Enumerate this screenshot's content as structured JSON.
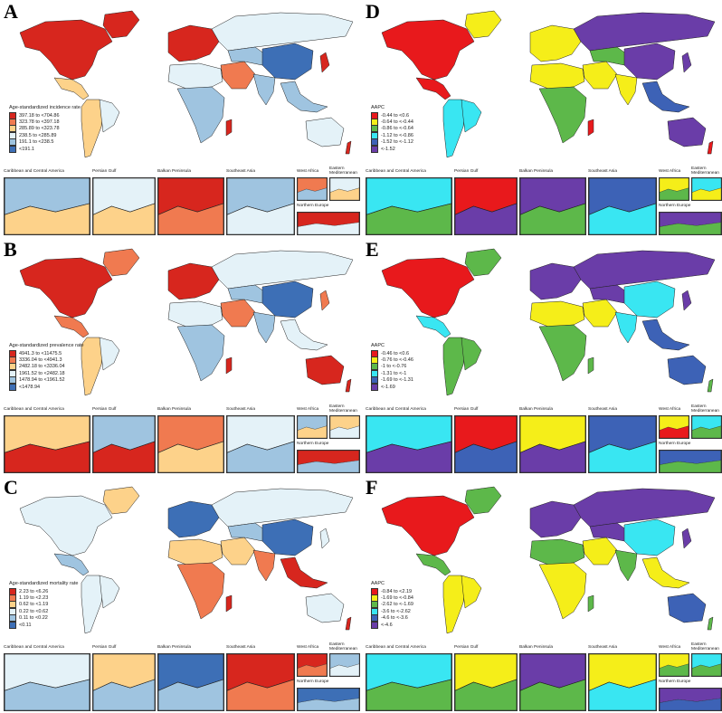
{
  "panels": [
    {
      "letter": "A",
      "legend_title": "Age-standardized incidence rate",
      "legend": [
        {
          "label": "397.18 to <704.86",
          "color": "#d7261e"
        },
        {
          "label": "323.78 to <397.18",
          "color": "#f07a50"
        },
        {
          "label": "285.89 to <323.78",
          "color": "#fdd28a"
        },
        {
          "label": "238.5 to <285.89",
          "color": "#e4f2f8"
        },
        {
          "label": "191.1 to <238.5",
          "color": "#9fc4e0"
        },
        {
          "label": "<191.1",
          "color": "#3d6fb6"
        }
      ],
      "colors": {
        "north_america": "#d7261e",
        "greenland": "#d7261e",
        "mexico": "#fdd28a",
        "south_america": "#fdd28a",
        "brazil": "#e4f2f8",
        "europe": "#d7261e",
        "north_africa": "#e4f2f8",
        "sub_saharan": "#9fc4e0",
        "middle_east": "#f07a50",
        "russia": "#e4f2f8",
        "central_asia": "#9fc4e0",
        "china": "#3d6fb6",
        "india": "#9fc4e0",
        "southeast_asia": "#9fc4e0",
        "australia": "#e4f2f8",
        "madagascar": "#d7261e",
        "japan": "#d7261e"
      }
    },
    {
      "letter": "B",
      "legend_title": "Age-standardized prevalence rate",
      "legend": [
        {
          "label": "4941.3 to <11475.5",
          "color": "#d7261e"
        },
        {
          "label": "3336.04 to <4941.3",
          "color": "#f07a50"
        },
        {
          "label": "2482.18 to <3336.04",
          "color": "#fdd28a"
        },
        {
          "label": "1961.52 to <2482.18",
          "color": "#e4f2f8"
        },
        {
          "label": "1478.94 to <1961.52",
          "color": "#9fc4e0"
        },
        {
          "label": "<1478.94",
          "color": "#3d6fb6"
        }
      ],
      "colors": {
        "north_america": "#d7261e",
        "greenland": "#f07a50",
        "mexico": "#f07a50",
        "south_america": "#fdd28a",
        "brazil": "#e4f2f8",
        "europe": "#d7261e",
        "north_africa": "#e4f2f8",
        "sub_saharan": "#9fc4e0",
        "middle_east": "#f07a50",
        "russia": "#e4f2f8",
        "central_asia": "#9fc4e0",
        "china": "#3d6fb6",
        "india": "#9fc4e0",
        "southeast_asia": "#e4f2f8",
        "australia": "#d7261e",
        "madagascar": "#d7261e",
        "japan": "#f07a50"
      }
    },
    {
      "letter": "C",
      "legend_title": "Age-standardized mortality rate",
      "legend": [
        {
          "label": "2.23 to <6.26",
          "color": "#d7261e"
        },
        {
          "label": "1.19 to <2.23",
          "color": "#f07a50"
        },
        {
          "label": "0.62 to <1.19",
          "color": "#fdd28a"
        },
        {
          "label": "0.22 to <0.62",
          "color": "#e4f2f8"
        },
        {
          "label": "0.11 to <0.22",
          "color": "#9fc4e0"
        },
        {
          "label": "<0.11",
          "color": "#3d6fb6"
        }
      ],
      "colors": {
        "north_america": "#e4f2f8",
        "greenland": "#fdd28a",
        "mexico": "#9fc4e0",
        "south_america": "#e4f2f8",
        "brazil": "#e4f2f8",
        "europe": "#3d6fb6",
        "north_africa": "#fdd28a",
        "sub_saharan": "#f07a50",
        "middle_east": "#fdd28a",
        "russia": "#e4f2f8",
        "central_asia": "#9fc4e0",
        "china": "#3d6fb6",
        "india": "#f07a50",
        "southeast_asia": "#d7261e",
        "australia": "#e4f2f8",
        "madagascar": "#d7261e",
        "japan": "#e4f2f8"
      }
    },
    {
      "letter": "D",
      "legend_title": "AAPC",
      "legend": [
        {
          "label": "-0.44 to <0.6",
          "color": "#e8191c"
        },
        {
          "label": "-0.64 to <-0.44",
          "color": "#f5ee19"
        },
        {
          "label": "-0.86 to <-0.64",
          "color": "#5db84a"
        },
        {
          "label": "-1.12 to <-0.86",
          "color": "#39e6f2"
        },
        {
          "label": "-1.52 to <-1.12",
          "color": "#3d62b6"
        },
        {
          "label": "<-1.52",
          "color": "#6a3da8"
        }
      ],
      "colors": {
        "north_america": "#e8191c",
        "greenland": "#f5ee19",
        "mexico": "#e8191c",
        "south_america": "#39e6f2",
        "brazil": "#39e6f2",
        "europe": "#f5ee19",
        "north_africa": "#f5ee19",
        "sub_saharan": "#5db84a",
        "middle_east": "#f5ee19",
        "russia": "#6a3da8",
        "central_asia": "#5db84a",
        "china": "#6a3da8",
        "india": "#f5ee19",
        "southeast_asia": "#3d62b6",
        "australia": "#6a3da8",
        "madagascar": "#e8191c",
        "japan": "#6a3da8"
      }
    },
    {
      "letter": "E",
      "legend_title": "AAPC",
      "legend": [
        {
          "label": "-0.46 to <0.6",
          "color": "#e8191c"
        },
        {
          "label": "-0.76 to <-0.46",
          "color": "#f5ee19"
        },
        {
          "label": "-1 to <-0.76",
          "color": "#5db84a"
        },
        {
          "label": "-1.31 to <-1",
          "color": "#39e6f2"
        },
        {
          "label": "-1.69 to <-1.31",
          "color": "#3d62b6"
        },
        {
          "label": "<-1.69",
          "color": "#6a3da8"
        }
      ],
      "colors": {
        "north_america": "#e8191c",
        "greenland": "#5db84a",
        "mexico": "#39e6f2",
        "south_america": "#5db84a",
        "brazil": "#5db84a",
        "europe": "#6a3da8",
        "north_africa": "#f5ee19",
        "sub_saharan": "#5db84a",
        "middle_east": "#f5ee19",
        "russia": "#6a3da8",
        "central_asia": "#6a3da8",
        "china": "#39e6f2",
        "india": "#39e6f2",
        "southeast_asia": "#3d62b6",
        "australia": "#3d62b6",
        "madagascar": "#5db84a",
        "japan": "#6a3da8"
      }
    },
    {
      "letter": "F",
      "legend_title": "AAPC",
      "legend": [
        {
          "label": "-0.84 to <2.19",
          "color": "#e8191c"
        },
        {
          "label": "-1.69 to <-0.84",
          "color": "#f5ee19"
        },
        {
          "label": "-2.62 to <-1.69",
          "color": "#5db84a"
        },
        {
          "label": "-3.6 to <-2.62",
          "color": "#39e6f2"
        },
        {
          "label": "-4.6 to <-3.6",
          "color": "#3d62b6"
        },
        {
          "label": "<-4.6",
          "color": "#6a3da8"
        }
      ],
      "colors": {
        "north_america": "#e8191c",
        "greenland": "#5db84a",
        "mexico": "#5db84a",
        "south_america": "#f5ee19",
        "brazil": "#f5ee19",
        "europe": "#6a3da8",
        "north_africa": "#5db84a",
        "sub_saharan": "#f5ee19",
        "middle_east": "#f5ee19",
        "russia": "#6a3da8",
        "central_asia": "#6a3da8",
        "china": "#39e6f2",
        "india": "#5db84a",
        "southeast_asia": "#f5ee19",
        "australia": "#3d62b6",
        "madagascar": "#5db84a",
        "japan": "#6a3da8"
      }
    }
  ],
  "inset_labels": {
    "caribbean": "Caribbean and Central America",
    "persian_gulf": "Persian Gulf",
    "balkan": "Balkan Peninsula",
    "southeast_asia": "Southeast Asia",
    "west_africa": "West Africa",
    "eastern_med": "Eastern Mediterranean",
    "northern_europe": "Northern Europe"
  },
  "inset_colors": [
    {
      "caribbean": [
        "#9fc4e0",
        "#fdd28a"
      ],
      "persian": [
        "#e4f2f8",
        "#fdd28a"
      ],
      "balkan": [
        "#d7261e",
        "#f07a50"
      ],
      "sea": [
        "#9fc4e0",
        "#e4f2f8"
      ],
      "west": [
        "#f07a50",
        "#9fc4e0"
      ],
      "east": [
        "#e4f2f8",
        "#fdd28a"
      ],
      "north": [
        "#d7261e",
        "#e4f2f8"
      ]
    },
    {
      "caribbean": [
        "#fdd28a",
        "#d7261e"
      ],
      "persian": [
        "#9fc4e0",
        "#d7261e"
      ],
      "balkan": [
        "#f07a50",
        "#fdd28a"
      ],
      "sea": [
        "#e4f2f8",
        "#9fc4e0"
      ],
      "west": [
        "#9fc4e0",
        "#fdd28a"
      ],
      "east": [
        "#fdd28a",
        "#e4f2f8"
      ],
      "north": [
        "#d7261e",
        "#9fc4e0"
      ]
    },
    {
      "caribbean": [
        "#e4f2f8",
        "#9fc4e0"
      ],
      "persian": [
        "#fdd28a",
        "#9fc4e0"
      ],
      "balkan": [
        "#3d6fb6",
        "#9fc4e0"
      ],
      "sea": [
        "#d7261e",
        "#f07a50"
      ],
      "west": [
        "#d7261e",
        "#f07a50"
      ],
      "east": [
        "#9fc4e0",
        "#e4f2f8"
      ],
      "north": [
        "#3d6fb6",
        "#9fc4e0"
      ]
    },
    {
      "caribbean": [
        "#39e6f2",
        "#5db84a"
      ],
      "persian": [
        "#e8191c",
        "#6a3da8"
      ],
      "balkan": [
        "#6a3da8",
        "#5db84a"
      ],
      "sea": [
        "#3d62b6",
        "#39e6f2"
      ],
      "west": [
        "#f5ee19",
        "#5db84a"
      ],
      "east": [
        "#39e6f2",
        "#f5ee19"
      ],
      "north": [
        "#6a3da8",
        "#5db84a"
      ]
    },
    {
      "caribbean": [
        "#39e6f2",
        "#6a3da8"
      ],
      "persian": [
        "#e8191c",
        "#3d62b6"
      ],
      "balkan": [
        "#f5ee19",
        "#6a3da8"
      ],
      "sea": [
        "#3d62b6",
        "#39e6f2"
      ],
      "west": [
        "#f5ee19",
        "#e8191c"
      ],
      "east": [
        "#39e6f2",
        "#5db84a"
      ],
      "north": [
        "#3d62b6",
        "#5db84a"
      ]
    },
    {
      "caribbean": [
        "#39e6f2",
        "#5db84a"
      ],
      "persian": [
        "#f5ee19",
        "#5db84a"
      ],
      "balkan": [
        "#6a3da8",
        "#5db84a"
      ],
      "sea": [
        "#f5ee19",
        "#39e6f2"
      ],
      "west": [
        "#f5ee19",
        "#5db84a"
      ],
      "east": [
        "#39e6f2",
        "#5db84a"
      ],
      "north": [
        "#6a3da8",
        "#3d62b6"
      ]
    }
  ]
}
